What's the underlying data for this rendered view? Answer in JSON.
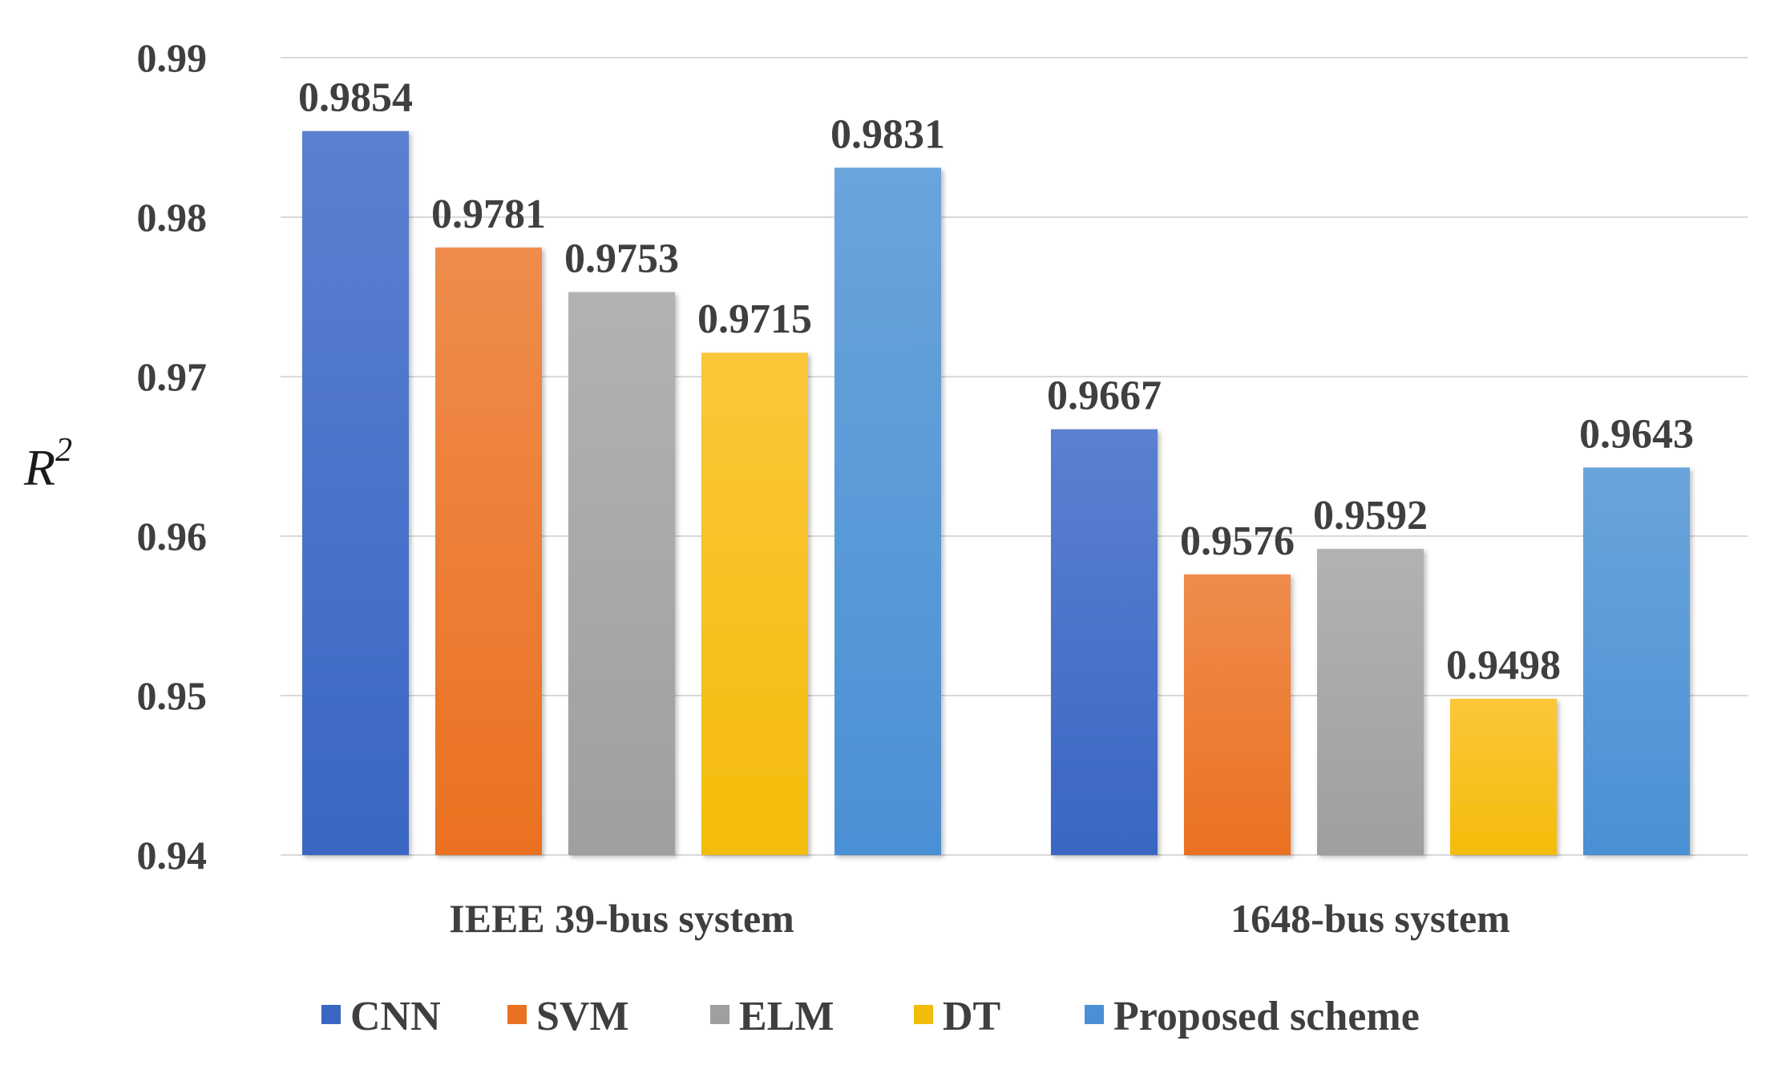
{
  "chart_data": {
    "type": "bar",
    "title": "",
    "xlabel": "",
    "ylabel": "R",
    "ylabel_superscript": "2",
    "ylim": [
      0.94,
      0.99
    ],
    "ticks": [
      "0.94",
      "0.95",
      "0.96",
      "0.97",
      "0.98",
      "0.99"
    ],
    "grid": true,
    "legend_position": "bottom",
    "categories": [
      "IEEE 39-bus system",
      "1648-bus system"
    ],
    "series": [
      {
        "name": "CNN",
        "values": [
          0.9854,
          0.9667
        ],
        "labels": [
          "0.9854",
          "0.9667"
        ],
        "color": "#3a66c4",
        "color_light": "#5b80d0"
      },
      {
        "name": "SVM",
        "values": [
          0.9781,
          0.9576
        ],
        "labels": [
          "0.9781",
          "0.9576"
        ],
        "color": "#ea7121",
        "color_light": "#ef8c4c"
      },
      {
        "name": "ELM",
        "values": [
          0.9753,
          0.9592
        ],
        "labels": [
          "0.9753",
          "0.9592"
        ],
        "color": "#9f9f9f",
        "color_light": "#b2b2b2"
      },
      {
        "name": "DT",
        "values": [
          0.9715,
          0.9498
        ],
        "labels": [
          "0.9715",
          "0.9498"
        ],
        "color": "#f4bc0a",
        "color_light": "#fcc63a"
      },
      {
        "name": "Proposed scheme",
        "values": [
          0.9831,
          0.9643
        ],
        "labels": [
          "0.9831",
          "0.9643"
        ],
        "color": "#4a90d4",
        "color_light": "#6aa4dc"
      }
    ]
  }
}
